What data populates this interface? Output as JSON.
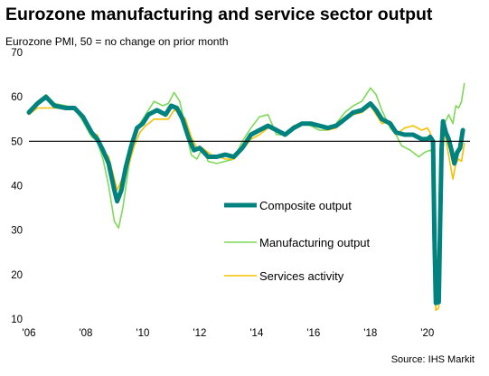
{
  "title": "Eurozone manufacturing and service sector output",
  "subtitle": "Eurozone PMI, 50 = no change on prior month",
  "source": "Source: IHS Markit",
  "chart_data": {
    "type": "line",
    "title": "Eurozone manufacturing and service sector output",
    "subtitle": "Eurozone PMI, 50 = no change on prior month",
    "xlabel": "",
    "ylabel": "",
    "xlim": [
      2006.0,
      2021.5
    ],
    "ylim": [
      10,
      70
    ],
    "yticks": [
      10,
      20,
      30,
      40,
      50,
      60,
      70
    ],
    "xticks": [
      {
        "value": 2006,
        "label": "'06"
      },
      {
        "value": 2008,
        "label": "'08"
      },
      {
        "value": 2010,
        "label": "'10"
      },
      {
        "value": 2012,
        "label": "'12"
      },
      {
        "value": 2014,
        "label": "'14"
      },
      {
        "value": 2016,
        "label": "'16"
      },
      {
        "value": 2018,
        "label": "'18"
      },
      {
        "value": 2020,
        "label": "'20"
      }
    ],
    "reference_line": 50,
    "grid": false,
    "legend_position": "center-right",
    "series": [
      {
        "name": "Composite output",
        "color": "#00827f",
        "points": [
          [
            2006.0,
            56.5
          ],
          [
            2006.3,
            58.5
          ],
          [
            2006.6,
            60
          ],
          [
            2006.9,
            58
          ],
          [
            2007.3,
            57.5
          ],
          [
            2007.6,
            57.5
          ],
          [
            2007.9,
            55.5
          ],
          [
            2008.2,
            52
          ],
          [
            2008.4,
            50.5
          ],
          [
            2008.6,
            48
          ],
          [
            2008.8,
            45
          ],
          [
            2009.0,
            39
          ],
          [
            2009.1,
            36.5
          ],
          [
            2009.25,
            39
          ],
          [
            2009.4,
            44
          ],
          [
            2009.6,
            49
          ],
          [
            2009.8,
            53
          ],
          [
            2010.0,
            54
          ],
          [
            2010.2,
            56
          ],
          [
            2010.5,
            57
          ],
          [
            2010.8,
            56
          ],
          [
            2011.0,
            58
          ],
          [
            2011.2,
            57.5
          ],
          [
            2011.4,
            55
          ],
          [
            2011.6,
            51
          ],
          [
            2011.8,
            48
          ],
          [
            2012.0,
            48.5
          ],
          [
            2012.3,
            46.5
          ],
          [
            2012.6,
            46.5
          ],
          [
            2012.9,
            47
          ],
          [
            2013.2,
            46.5
          ],
          [
            2013.5,
            48.5
          ],
          [
            2013.8,
            51.5
          ],
          [
            2014.1,
            52.5
          ],
          [
            2014.4,
            53.5
          ],
          [
            2014.7,
            52.5
          ],
          [
            2015.0,
            51.5
          ],
          [
            2015.3,
            53
          ],
          [
            2015.6,
            54
          ],
          [
            2015.9,
            54
          ],
          [
            2016.2,
            53.5
          ],
          [
            2016.5,
            53
          ],
          [
            2016.8,
            53.5
          ],
          [
            2017.1,
            55
          ],
          [
            2017.4,
            56.5
          ],
          [
            2017.7,
            57
          ],
          [
            2018.0,
            58.5
          ],
          [
            2018.2,
            57
          ],
          [
            2018.4,
            55
          ],
          [
            2018.7,
            54
          ],
          [
            2018.9,
            52
          ],
          [
            2019.2,
            51.5
          ],
          [
            2019.5,
            51.5
          ],
          [
            2019.8,
            50.5
          ],
          [
            2020.0,
            50.5
          ],
          [
            2020.1,
            51
          ],
          [
            2020.2,
            50
          ],
          [
            2020.25,
            29
          ],
          [
            2020.3,
            13.6
          ],
          [
            2020.4,
            13.8
          ],
          [
            2020.45,
            31
          ],
          [
            2020.5,
            48
          ],
          [
            2020.55,
            54.5
          ],
          [
            2020.65,
            52
          ],
          [
            2020.75,
            50.5
          ],
          [
            2020.85,
            48
          ],
          [
            2020.95,
            45
          ],
          [
            2021.05,
            47.5
          ],
          [
            2021.15,
            48.5
          ],
          [
            2021.25,
            52.5
          ]
        ]
      },
      {
        "name": "Manufacturing output",
        "color": "#7ed957",
        "points": [
          [
            2006.0,
            57
          ],
          [
            2006.3,
            59
          ],
          [
            2006.6,
            60.5
          ],
          [
            2006.9,
            58.5
          ],
          [
            2007.3,
            58
          ],
          [
            2007.6,
            57.5
          ],
          [
            2007.9,
            54.5
          ],
          [
            2008.2,
            51
          ],
          [
            2008.4,
            50
          ],
          [
            2008.6,
            46
          ],
          [
            2008.8,
            40
          ],
          [
            2009.0,
            32
          ],
          [
            2009.15,
            30.5
          ],
          [
            2009.3,
            35
          ],
          [
            2009.5,
            44
          ],
          [
            2009.7,
            51
          ],
          [
            2009.9,
            54
          ],
          [
            2010.1,
            56
          ],
          [
            2010.4,
            59
          ],
          [
            2010.7,
            58
          ],
          [
            2010.9,
            58.5
          ],
          [
            2011.1,
            61
          ],
          [
            2011.3,
            59
          ],
          [
            2011.5,
            53
          ],
          [
            2011.7,
            47
          ],
          [
            2011.9,
            46
          ],
          [
            2012.1,
            48.5
          ],
          [
            2012.3,
            45.5
          ],
          [
            2012.6,
            45
          ],
          [
            2012.9,
            45.5
          ],
          [
            2013.2,
            46
          ],
          [
            2013.5,
            50
          ],
          [
            2013.8,
            53
          ],
          [
            2014.1,
            55.5
          ],
          [
            2014.4,
            56
          ],
          [
            2014.7,
            51.5
          ],
          [
            2015.0,
            51.5
          ],
          [
            2015.3,
            53
          ],
          [
            2015.6,
            54
          ],
          [
            2015.9,
            53.5
          ],
          [
            2016.2,
            52.5
          ],
          [
            2016.5,
            52.5
          ],
          [
            2016.8,
            54
          ],
          [
            2017.1,
            56.5
          ],
          [
            2017.4,
            58
          ],
          [
            2017.7,
            59
          ],
          [
            2018.0,
            62
          ],
          [
            2018.2,
            60.5
          ],
          [
            2018.4,
            57
          ],
          [
            2018.7,
            53
          ],
          [
            2018.9,
            51.5
          ],
          [
            2019.1,
            49
          ],
          [
            2019.4,
            48
          ],
          [
            2019.7,
            46.5
          ],
          [
            2019.9,
            47.5
          ],
          [
            2020.1,
            48
          ],
          [
            2020.2,
            47.5
          ],
          [
            2020.25,
            34
          ],
          [
            2020.3,
            15
          ],
          [
            2020.4,
            14.5
          ],
          [
            2020.45,
            33
          ],
          [
            2020.5,
            48
          ],
          [
            2020.6,
            54
          ],
          [
            2020.75,
            56
          ],
          [
            2020.9,
            54
          ],
          [
            2021.0,
            58
          ],
          [
            2021.1,
            57.5
          ],
          [
            2021.2,
            59
          ],
          [
            2021.3,
            63
          ]
        ]
      },
      {
        "name": "Services activity",
        "color": "#f5c000",
        "points": [
          [
            2006.0,
            56
          ],
          [
            2006.3,
            57.5
          ],
          [
            2006.6,
            57.5
          ],
          [
            2006.9,
            57.5
          ],
          [
            2007.3,
            57.5
          ],
          [
            2007.6,
            57.5
          ],
          [
            2007.9,
            56
          ],
          [
            2008.2,
            51.5
          ],
          [
            2008.4,
            51.5
          ],
          [
            2008.6,
            48
          ],
          [
            2008.8,
            46.5
          ],
          [
            2009.0,
            41.5
          ],
          [
            2009.1,
            39
          ],
          [
            2009.3,
            42
          ],
          [
            2009.5,
            44.5
          ],
          [
            2009.7,
            49
          ],
          [
            2009.9,
            52
          ],
          [
            2010.1,
            53.5
          ],
          [
            2010.4,
            55
          ],
          [
            2010.7,
            55
          ],
          [
            2010.9,
            55
          ],
          [
            2011.1,
            57
          ],
          [
            2011.3,
            56.5
          ],
          [
            2011.5,
            55
          ],
          [
            2011.7,
            51
          ],
          [
            2011.9,
            48.5
          ],
          [
            2012.1,
            48.5
          ],
          [
            2012.4,
            47
          ],
          [
            2012.7,
            46.5
          ],
          [
            2012.9,
            46
          ],
          [
            2013.2,
            46
          ],
          [
            2013.5,
            48
          ],
          [
            2013.8,
            50.5
          ],
          [
            2014.1,
            51.5
          ],
          [
            2014.4,
            53
          ],
          [
            2014.7,
            52.5
          ],
          [
            2015.0,
            51.5
          ],
          [
            2015.3,
            53.5
          ],
          [
            2015.6,
            54
          ],
          [
            2015.9,
            54
          ],
          [
            2016.2,
            53.5
          ],
          [
            2016.5,
            52.5
          ],
          [
            2016.8,
            53
          ],
          [
            2017.1,
            55
          ],
          [
            2017.4,
            56
          ],
          [
            2017.7,
            56.5
          ],
          [
            2018.0,
            58
          ],
          [
            2018.2,
            56
          ],
          [
            2018.4,
            54
          ],
          [
            2018.7,
            54.5
          ],
          [
            2018.9,
            51.5
          ],
          [
            2019.2,
            53
          ],
          [
            2019.5,
            53.5
          ],
          [
            2019.8,
            52.5
          ],
          [
            2020.0,
            53
          ],
          [
            2020.1,
            52
          ],
          [
            2020.2,
            48
          ],
          [
            2020.25,
            27
          ],
          [
            2020.3,
            12
          ],
          [
            2020.4,
            12.5
          ],
          [
            2020.45,
            30
          ],
          [
            2020.5,
            48.5
          ],
          [
            2020.55,
            54.5
          ],
          [
            2020.65,
            50.5
          ],
          [
            2020.8,
            45
          ],
          [
            2020.9,
            41.5
          ],
          [
            2021.0,
            45
          ],
          [
            2021.1,
            46
          ],
          [
            2021.2,
            45.5
          ],
          [
            2021.3,
            49.5
          ]
        ]
      }
    ]
  }
}
